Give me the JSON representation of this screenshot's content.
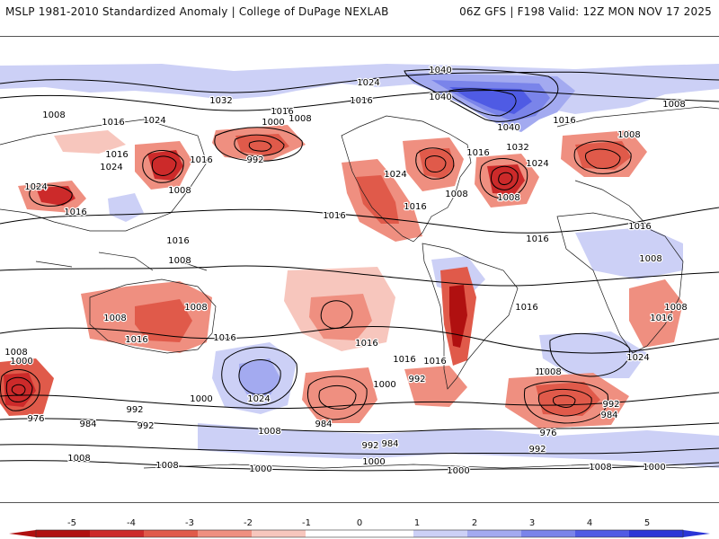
{
  "header": {
    "left_title": "MSLP 1981-2010 Standardized Anomaly | College of DuPage NEXLAB",
    "right_title": "06Z GFS | F198 Valid: 12Z MON NOV 17 2025"
  },
  "colors": {
    "neg5": "#b01010",
    "neg4": "#cc2a2a",
    "neg3": "#e05a4a",
    "neg2": "#ef8f80",
    "neg1": "#f7c6bd",
    "neutral": "#ffffff",
    "pos1": "#ccd0f6",
    "pos2": "#a3aaf0",
    "pos3": "#7a84ea",
    "pos4": "#4f5be4",
    "pos5": "#2b35d6",
    "contour": "#000000",
    "coast": "#1a1a1a"
  },
  "contour_labels": [
    {
      "id": "l1",
      "text": "1032"
    },
    {
      "id": "l2",
      "text": "1024"
    },
    {
      "id": "l3",
      "text": "1016"
    },
    {
      "id": "l4",
      "text": "1008"
    },
    {
      "id": "l5",
      "text": "1016"
    },
    {
      "id": "l6",
      "text": "1024"
    },
    {
      "id": "l7",
      "text": "1016"
    },
    {
      "id": "l8",
      "text": "1024"
    },
    {
      "id": "l9",
      "text": "1024"
    },
    {
      "id": "l10",
      "text": "1016"
    },
    {
      "id": "l11",
      "text": "1008"
    },
    {
      "id": "l12",
      "text": "1016"
    },
    {
      "id": "l13",
      "text": "1000"
    },
    {
      "id": "l14",
      "text": "1016"
    },
    {
      "id": "l15",
      "text": "1008"
    },
    {
      "id": "l16",
      "text": "992"
    },
    {
      "id": "l17",
      "text": "1016"
    },
    {
      "id": "l18",
      "text": "1024"
    },
    {
      "id": "l19",
      "text": "1016"
    },
    {
      "id": "l20",
      "text": "1040"
    },
    {
      "id": "l21",
      "text": "1040"
    },
    {
      "id": "l22",
      "text": "1040"
    },
    {
      "id": "l23",
      "text": "1032"
    },
    {
      "id": "l24",
      "text": "1016"
    },
    {
      "id": "l25",
      "text": "1008"
    },
    {
      "id": "l26",
      "text": "1008"
    },
    {
      "id": "l27",
      "text": "1016"
    },
    {
      "id": "l28",
      "text": "1008"
    },
    {
      "id": "l29",
      "text": "1016"
    },
    {
      "id": "l30",
      "text": "1024"
    },
    {
      "id": "l31",
      "text": "1008"
    },
    {
      "id": "l32",
      "text": "1016"
    },
    {
      "id": "l33",
      "text": "1016"
    },
    {
      "id": "l34",
      "text": "1008"
    },
    {
      "id": "l35",
      "text": "1008"
    },
    {
      "id": "l36",
      "text": "1016"
    },
    {
      "id": "l37",
      "text": "1016"
    },
    {
      "id": "l38",
      "text": "1008"
    },
    {
      "id": "l39",
      "text": "1008"
    },
    {
      "id": "l40",
      "text": "1008"
    },
    {
      "id": "l41",
      "text": "1016"
    },
    {
      "id": "l42",
      "text": "1024"
    },
    {
      "id": "l43",
      "text": "1016"
    },
    {
      "id": "l44",
      "text": "1016"
    },
    {
      "id": "l45",
      "text": "1008"
    },
    {
      "id": "l46",
      "text": "1016"
    },
    {
      "id": "l47",
      "text": "1008"
    },
    {
      "id": "l48",
      "text": "1000"
    },
    {
      "id": "l49",
      "text": "976"
    },
    {
      "id": "l50",
      "text": "984"
    },
    {
      "id": "l51",
      "text": "992"
    },
    {
      "id": "l52",
      "text": "992"
    },
    {
      "id": "l53",
      "text": "1000"
    },
    {
      "id": "l54",
      "text": "1024"
    },
    {
      "id": "l55",
      "text": "1008"
    },
    {
      "id": "l56",
      "text": "1016"
    },
    {
      "id": "l57",
      "text": "1000"
    },
    {
      "id": "l58",
      "text": "984"
    },
    {
      "id": "l59",
      "text": "992"
    },
    {
      "id": "l60",
      "text": "992"
    },
    {
      "id": "l61",
      "text": "984"
    },
    {
      "id": "l62",
      "text": "1000"
    },
    {
      "id": "l63",
      "text": "1008"
    },
    {
      "id": "l64",
      "text": "1008"
    },
    {
      "id": "l65",
      "text": "976"
    },
    {
      "id": "l66",
      "text": "992"
    },
    {
      "id": "l67",
      "text": "984"
    },
    {
      "id": "l68",
      "text": "992"
    },
    {
      "id": "l69",
      "text": "1008"
    },
    {
      "id": "l70",
      "text": "1000"
    },
    {
      "id": "l71",
      "text": "1008"
    },
    {
      "id": "l72",
      "text": "1000"
    },
    {
      "id": "l73",
      "text": "1000"
    }
  ],
  "colorbar": {
    "ticks": [
      "-5",
      "-4",
      "-3",
      "-2",
      "-1",
      "0",
      "1",
      "2",
      "3",
      "4",
      "5"
    ]
  }
}
